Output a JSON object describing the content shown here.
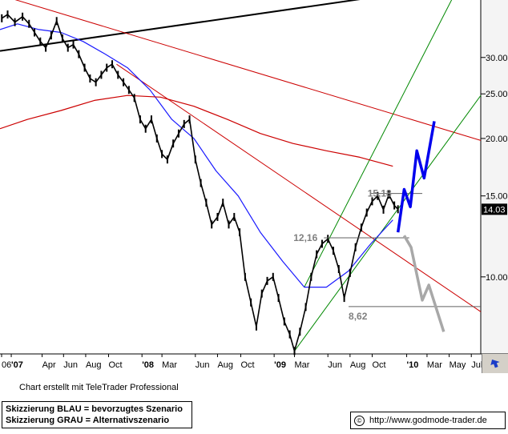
{
  "chart_data": {
    "type": "line",
    "y_scale": "log",
    "ylim": [
      6.8,
      40
    ],
    "yticks": [
      "30.00",
      "25.00",
      "20.00",
      "15.00",
      "10.00"
    ],
    "ytick_values": [
      30,
      25,
      20,
      15,
      10
    ],
    "last_price": "14.03",
    "x_start": "2006-12-15",
    "x_end": "2010-07-31",
    "xaxis_labels": [
      {
        "text": "06",
        "date": "2006-12-01"
      },
      {
        "text": "'07",
        "date": "2007-01-15"
      },
      {
        "text": "Apr",
        "date": "2007-04-10"
      },
      {
        "text": "Jun",
        "date": "2007-06-08"
      },
      {
        "text": "Aug",
        "date": "2007-08-08"
      },
      {
        "text": "Oct",
        "date": "2007-10-10"
      },
      {
        "text": "'08",
        "date": "2008-01-10"
      },
      {
        "text": "Mar",
        "date": "2008-03-05"
      },
      {
        "text": "Jun",
        "date": "2008-06-05"
      },
      {
        "text": "Aug",
        "date": "2008-08-05"
      },
      {
        "text": "Oct",
        "date": "2008-10-08"
      },
      {
        "text": "'09",
        "date": "2009-01-08"
      },
      {
        "text": "Mar",
        "date": "2009-03-05"
      },
      {
        "text": "Jun",
        "date": "2009-06-05"
      },
      {
        "text": "Aug",
        "date": "2009-08-05"
      },
      {
        "text": "Oct",
        "date": "2009-10-05"
      },
      {
        "text": "'10",
        "date": "2010-01-08"
      },
      {
        "text": "Mar",
        "date": "2010-03-05"
      },
      {
        "text": "May",
        "date": "2010-05-05"
      },
      {
        "text": "Jul",
        "date": "2010-07-05"
      }
    ],
    "series": [
      {
        "style": "price-bars",
        "color": "#000000",
        "points": [
          [
            "2006-12-20",
            36.5
          ],
          [
            "2007-01-05",
            37.2
          ],
          [
            "2007-01-25",
            35.8
          ],
          [
            "2007-02-15",
            36.8
          ],
          [
            "2007-03-05",
            35.5
          ],
          [
            "2007-03-20",
            34.0
          ],
          [
            "2007-04-05",
            32.5
          ],
          [
            "2007-04-20",
            31.5
          ],
          [
            "2007-05-05",
            33.5
          ],
          [
            "2007-05-20",
            36.0
          ],
          [
            "2007-06-05",
            33.0
          ],
          [
            "2007-06-20",
            31.5
          ],
          [
            "2007-07-05",
            32.0
          ],
          [
            "2007-07-20",
            30.5
          ],
          [
            "2007-08-05",
            28.5
          ],
          [
            "2007-08-20",
            27.0
          ],
          [
            "2007-09-05",
            26.5
          ],
          [
            "2007-09-20",
            27.5
          ],
          [
            "2007-10-05",
            28.5
          ],
          [
            "2007-10-20",
            29.0
          ],
          [
            "2007-11-05",
            27.5
          ],
          [
            "2007-11-20",
            26.5
          ],
          [
            "2007-12-05",
            25.5
          ],
          [
            "2007-12-20",
            24.5
          ],
          [
            "2008-01-05",
            22.0
          ],
          [
            "2008-01-20",
            21.0
          ],
          [
            "2008-02-05",
            22.0
          ],
          [
            "2008-02-20",
            20.0
          ],
          [
            "2008-03-05",
            18.5
          ],
          [
            "2008-03-20",
            18.0
          ],
          [
            "2008-04-05",
            19.5
          ],
          [
            "2008-04-20",
            20.5
          ],
          [
            "2008-05-05",
            21.5
          ],
          [
            "2008-05-20",
            22.0
          ],
          [
            "2008-06-05",
            18.0
          ],
          [
            "2008-06-20",
            16.0
          ],
          [
            "2008-07-05",
            14.5
          ],
          [
            "2008-07-20",
            13.0
          ],
          [
            "2008-08-05",
            13.5
          ],
          [
            "2008-08-20",
            14.5
          ],
          [
            "2008-09-05",
            13.0
          ],
          [
            "2008-09-20",
            13.5
          ],
          [
            "2008-10-05",
            12.5
          ],
          [
            "2008-10-20",
            10.0
          ],
          [
            "2008-11-05",
            8.8
          ],
          [
            "2008-11-20",
            7.8
          ],
          [
            "2008-12-05",
            9.2
          ],
          [
            "2008-12-20",
            9.8
          ],
          [
            "2009-01-05",
            10.0
          ],
          [
            "2009-01-20",
            9.0
          ],
          [
            "2009-02-05",
            8.0
          ],
          [
            "2009-02-20",
            7.5
          ],
          [
            "2009-03-05",
            6.9
          ],
          [
            "2009-03-20",
            7.6
          ],
          [
            "2009-04-05",
            8.6
          ],
          [
            "2009-04-20",
            10.0
          ],
          [
            "2009-05-05",
            11.2
          ],
          [
            "2009-05-20",
            11.8
          ],
          [
            "2009-06-05",
            12.1
          ],
          [
            "2009-06-20",
            11.4
          ],
          [
            "2009-07-05",
            10.4
          ],
          [
            "2009-07-20",
            9.0
          ],
          [
            "2009-08-05",
            10.2
          ],
          [
            "2009-08-20",
            11.6
          ],
          [
            "2009-09-05",
            12.8
          ],
          [
            "2009-09-20",
            13.8
          ],
          [
            "2009-10-05",
            14.6
          ],
          [
            "2009-10-20",
            15.0
          ],
          [
            "2009-11-05",
            14.0
          ],
          [
            "2009-11-20",
            15.1
          ],
          [
            "2009-12-05",
            14.3
          ],
          [
            "2009-12-15",
            14.03
          ]
        ]
      },
      {
        "style": "moving-average",
        "color": "#1a1aff",
        "points": [
          [
            "2006-12-15",
            34.5
          ],
          [
            "2007-02-01",
            35.5
          ],
          [
            "2007-04-01",
            34.5
          ],
          [
            "2007-06-01",
            34.0
          ],
          [
            "2007-08-01",
            32.5
          ],
          [
            "2007-10-01",
            30.5
          ],
          [
            "2007-12-01",
            28.5
          ],
          [
            "2008-02-01",
            25.5
          ],
          [
            "2008-04-01",
            22.0
          ],
          [
            "2008-06-01",
            20.0
          ],
          [
            "2008-08-01",
            17.0
          ],
          [
            "2008-10-01",
            15.0
          ],
          [
            "2008-12-01",
            12.5
          ],
          [
            "2009-02-01",
            10.8
          ],
          [
            "2009-04-01",
            9.5
          ],
          [
            "2009-06-01",
            9.5
          ],
          [
            "2009-08-01",
            10.3
          ],
          [
            "2009-10-01",
            11.8
          ],
          [
            "2009-12-01",
            13.3
          ]
        ]
      },
      {
        "style": "moving-average",
        "color": "#cc0000",
        "points": [
          [
            "2006-12-15",
            21.0
          ],
          [
            "2007-03-01",
            22.0
          ],
          [
            "2007-06-01",
            23.0
          ],
          [
            "2007-09-01",
            24.2
          ],
          [
            "2007-12-01",
            24.8
          ],
          [
            "2008-03-01",
            24.6
          ],
          [
            "2008-06-01",
            23.5
          ],
          [
            "2008-09-01",
            22.0
          ],
          [
            "2008-12-01",
            20.5
          ],
          [
            "2009-03-01",
            19.5
          ],
          [
            "2009-06-01",
            18.8
          ],
          [
            "2009-09-01",
            18.2
          ],
          [
            "2009-12-01",
            17.4
          ]
        ]
      }
    ],
    "trendlines": [
      {
        "color": "#000000",
        "from": [
          "2006-12-15",
          31.0
        ],
        "to": [
          "2009-11-20",
          41.0
        ]
      },
      {
        "color": "#cc0000",
        "from": [
          "2006-12-15",
          41.0
        ],
        "to": [
          "2010-07-31",
          19.8
        ]
      },
      {
        "color": "#cc0000",
        "from": [
          "2007-11-01",
          29.0
        ],
        "to": [
          "2010-07-31",
          8.4
        ]
      },
      {
        "color": "#008800",
        "from": [
          "2009-03-05",
          6.9
        ],
        "to": [
          "2010-07-31",
          24.8
        ]
      },
      {
        "color": "#008800",
        "from": [
          "2009-04-01",
          9.5
        ],
        "to": [
          "2010-06-01",
          43.0
        ]
      }
    ],
    "levels": [
      {
        "label": "15,18",
        "value": 15.18,
        "from": "2009-10-01",
        "to": "2010-02-20",
        "color": "#808080"
      },
      {
        "label": "12,16",
        "value": 12.16,
        "from": "2009-05-25",
        "to": "2010-01-15",
        "color": "#808080"
      },
      {
        "label": "8,62",
        "value": 8.62,
        "from": "2009-08-01",
        "to": "2010-07-31",
        "color": "#808080"
      }
    ],
    "scenario_preferred": {
      "color": "#0000ee",
      "points": [
        [
          "2009-12-15",
          12.5
        ],
        [
          "2010-01-01",
          15.5
        ],
        [
          "2010-01-18",
          14.2
        ],
        [
          "2010-02-05",
          18.8
        ],
        [
          "2010-02-25",
          16.4
        ],
        [
          "2010-03-25",
          21.8
        ]
      ]
    },
    "scenario_alternative": {
      "color": "#a8a8a8",
      "points": [
        [
          "2010-01-01",
          12.3
        ],
        [
          "2010-01-20",
          11.6
        ],
        [
          "2010-02-20",
          8.9
        ],
        [
          "2010-03-10",
          9.6
        ],
        [
          "2010-04-20",
          7.6
        ]
      ]
    }
  },
  "footer": {
    "credit": "Chart erstellt mit TeleTrader Professional",
    "legend_blue": "Skizzierung BLAU = bevorzugtes Szenario",
    "legend_grey": "Skizzierung GRAU = Alternativszenario",
    "url": "http://www.godmode-trader.de",
    "copyright_symbol": "©"
  }
}
